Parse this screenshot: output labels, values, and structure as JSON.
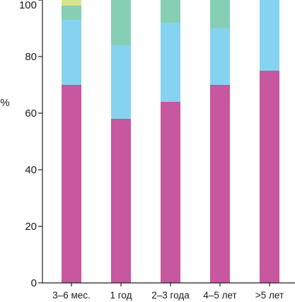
{
  "chart_data": {
    "type": "bar",
    "stacked": true,
    "ylabel": "%",
    "xlabel": "",
    "ylim": [
      0,
      100
    ],
    "yticks": [
      0,
      20,
      40,
      60,
      80,
      100
    ],
    "categories": [
      "3–6 мес.",
      "1 год",
      "2–3 года",
      "4–5 лет",
      ">5 лет"
    ],
    "series": [
      {
        "color": "#c7579e",
        "values": [
          70,
          58,
          64,
          70,
          75
        ]
      },
      {
        "color": "#86d3f1",
        "values": [
          23,
          26,
          28,
          20,
          25
        ]
      },
      {
        "color": "#86cfb5",
        "values": [
          5,
          16,
          8,
          10,
          0
        ]
      },
      {
        "color": "#d8e48a",
        "values": [
          2,
          0,
          0,
          0,
          0
        ]
      }
    ],
    "grid": false,
    "legend": "none"
  }
}
